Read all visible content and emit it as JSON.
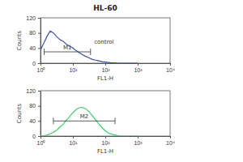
{
  "chart_data": [
    {
      "type": "line",
      "title": "HL-60",
      "x_label": "FL1-H",
      "y_label": "Counts",
      "log": "x",
      "grid": false,
      "color": "#3a4fa8",
      "x": [
        1,
        1.3,
        1.6,
        2,
        2.5,
        3.2,
        4,
        5,
        6.3,
        8,
        10,
        12.6,
        15.8,
        20,
        25,
        32,
        40,
        50,
        63,
        80,
        100,
        126,
        158,
        200,
        251,
        316,
        398,
        501,
        631,
        794,
        1000
      ],
      "values": [
        35,
        55,
        72,
        85,
        80,
        70,
        62,
        58,
        50,
        45,
        40,
        33,
        28,
        22,
        18,
        14,
        10,
        8,
        6,
        4,
        3,
        2,
        1,
        1,
        0,
        0,
        0,
        0,
        0,
        0,
        0
      ],
      "xlim": [
        1,
        10000
      ],
      "xticks": [
        {
          "value": 1,
          "label": "10⁰"
        },
        {
          "value": 10,
          "label": "10¹"
        },
        {
          "value": 100,
          "label": "10²"
        },
        {
          "value": 1000,
          "label": "10³"
        },
        {
          "value": 10000,
          "label": "10⁴"
        }
      ],
      "ylim": [
        0,
        120
      ],
      "yticks": [
        0,
        40,
        80,
        120
      ],
      "markers": [
        {
          "label": "M1",
          "x": [
            1.3,
            35
          ],
          "y": 30
        }
      ],
      "annotations": [
        {
          "text": "control",
          "x": 45,
          "y": 52
        }
      ]
    },
    {
      "type": "line",
      "x_label": "FL1-H",
      "y_label": "Counts",
      "log": "x",
      "grid": false,
      "color": "#3ccf6a",
      "x": [
        1,
        1.3,
        1.6,
        2,
        2.5,
        3.2,
        4,
        5,
        6.3,
        8,
        10,
        12.6,
        15.8,
        20,
        25,
        32,
        40,
        50,
        63,
        80,
        100,
        126,
        158,
        200,
        251,
        316,
        398,
        501,
        631,
        794,
        1000
      ],
      "values": [
        0,
        1,
        3,
        6,
        10,
        16,
        24,
        32,
        42,
        52,
        62,
        70,
        75,
        76,
        72,
        64,
        54,
        43,
        32,
        22,
        14,
        8,
        5,
        3,
        1,
        0,
        0,
        0,
        0,
        0,
        0
      ],
      "xlim": [
        1,
        10000
      ],
      "xticks": [
        {
          "value": 1,
          "label": "10⁰"
        },
        {
          "value": 10,
          "label": "10¹"
        },
        {
          "value": 100,
          "label": "10²"
        },
        {
          "value": 1000,
          "label": "10³"
        },
        {
          "value": 10000,
          "label": "10⁴"
        }
      ],
      "ylim": [
        0,
        120
      ],
      "yticks": [
        0,
        40,
        80,
        120
      ],
      "markers": [
        {
          "label": "M2",
          "x": [
            2.5,
            200
          ],
          "y": 40
        }
      ]
    }
  ]
}
